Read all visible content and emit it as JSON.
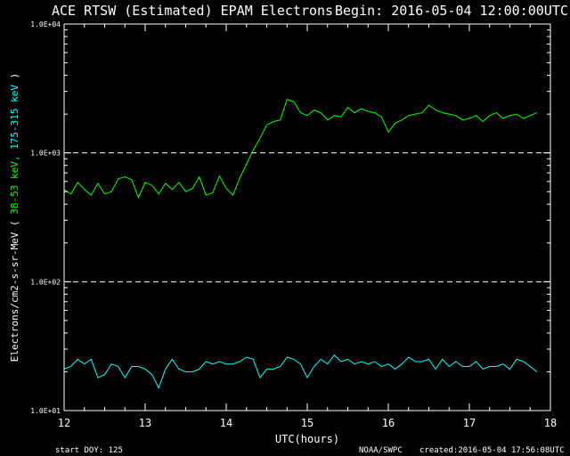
{
  "chart_data": {
    "type": "line",
    "title": "ACE RTSW (Estimated) EPAM Electrons",
    "begin": "Begin: 2016-05-04 12:00:00UTC",
    "xlabel": "UTC(hours)",
    "ylabel_prefix": "Electrons/cm2-s-sr-MeV ( ",
    "ylabel_green": "38-53 keV,",
    "ylabel_cyan": "175-315 keV",
    "ylabel_suffix": " )",
    "yscale": "log",
    "xlim": [
      12,
      18
    ],
    "ylim": [
      10,
      10000
    ],
    "x_ticks": [
      "12",
      "13",
      "14",
      "15",
      "16",
      "17",
      "18"
    ],
    "y_ticks": [
      "1.0E+01",
      "1.0E+02",
      "1.0E+03",
      "1.0E+04"
    ],
    "reference_lines": [
      100,
      1000
    ],
    "footer": {
      "start_doy": "start DOY:  125",
      "source": "NOAA/SWPC",
      "created": "created:2016-05-04 17:56:08UTC"
    },
    "colors": {
      "green": "#00ff00",
      "cyan": "#00ffff",
      "axis": "#ffffff",
      "background": "#000000"
    },
    "series": [
      {
        "name": "38-53 keV",
        "color": "#00ff00",
        "x": [
          12.0,
          12.083,
          12.167,
          12.25,
          12.333,
          12.417,
          12.5,
          12.583,
          12.667,
          12.75,
          12.833,
          12.917,
          13.0,
          13.083,
          13.167,
          13.25,
          13.333,
          13.417,
          13.5,
          13.583,
          13.667,
          13.75,
          13.833,
          13.917,
          14.0,
          14.083,
          14.167,
          14.25,
          14.333,
          14.417,
          14.5,
          14.583,
          14.667,
          14.75,
          14.833,
          14.917,
          15.0,
          15.083,
          15.167,
          15.25,
          15.333,
          15.417,
          15.5,
          15.583,
          15.667,
          15.75,
          15.833,
          15.917,
          16.0,
          16.083,
          16.167,
          16.25,
          16.333,
          16.417,
          16.5,
          16.583,
          16.667,
          16.75,
          16.833,
          16.917,
          17.0,
          17.083,
          17.167,
          17.25,
          17.333,
          17.417,
          17.5,
          17.583,
          17.667,
          17.75,
          17.833
        ],
        "values": [
          520,
          480,
          590,
          520,
          470,
          580,
          480,
          500,
          630,
          650,
          620,
          450,
          590,
          560,
          480,
          580,
          520,
          590,
          500,
          530,
          650,
          470,
          490,
          660,
          530,
          470,
          640,
          820,
          1050,
          1300,
          1650,
          1750,
          1800,
          2600,
          2500,
          2050,
          1950,
          2150,
          2050,
          1800,
          1950,
          1900,
          2250,
          2050,
          2200,
          2100,
          2050,
          1900,
          1450,
          1700,
          1800,
          1950,
          2000,
          2050,
          2350,
          2150,
          2050,
          2000,
          1950,
          1800,
          1850,
          1950,
          1750,
          1950,
          2050,
          1850,
          1950,
          2000,
          1850,
          1950,
          2050
        ]
      },
      {
        "name": "175-315 keV",
        "color": "#00ffff",
        "x": [
          12.0,
          12.083,
          12.167,
          12.25,
          12.333,
          12.417,
          12.5,
          12.583,
          12.667,
          12.75,
          12.833,
          12.917,
          13.0,
          13.083,
          13.167,
          13.25,
          13.333,
          13.417,
          13.5,
          13.583,
          13.667,
          13.75,
          13.833,
          13.917,
          14.0,
          14.083,
          14.167,
          14.25,
          14.333,
          14.417,
          14.5,
          14.583,
          14.667,
          14.75,
          14.833,
          14.917,
          15.0,
          15.083,
          15.167,
          15.25,
          15.333,
          15.417,
          15.5,
          15.583,
          15.667,
          15.75,
          15.833,
          15.917,
          16.0,
          16.083,
          16.167,
          16.25,
          16.333,
          16.417,
          16.5,
          16.583,
          16.667,
          16.75,
          16.833,
          16.917,
          17.0,
          17.083,
          17.167,
          17.25,
          17.333,
          17.417,
          17.5,
          17.583,
          17.667,
          17.75,
          17.833
        ],
        "values": [
          21,
          22,
          25,
          23,
          25,
          18,
          19,
          23,
          22,
          18,
          22,
          22,
          21,
          19,
          15,
          21,
          25,
          21,
          20,
          20,
          21,
          24,
          23,
          24,
          23,
          23,
          24,
          26,
          25,
          18,
          21,
          21,
          22,
          26,
          25,
          23,
          18,
          22,
          25,
          23,
          27,
          24,
          25,
          23,
          24,
          23,
          24,
          22,
          23,
          21,
          23,
          26,
          24,
          24,
          25,
          21,
          25,
          22,
          24,
          22,
          22,
          24,
          21,
          22,
          22,
          23,
          21,
          25,
          24,
          22,
          20
        ]
      }
    ]
  }
}
